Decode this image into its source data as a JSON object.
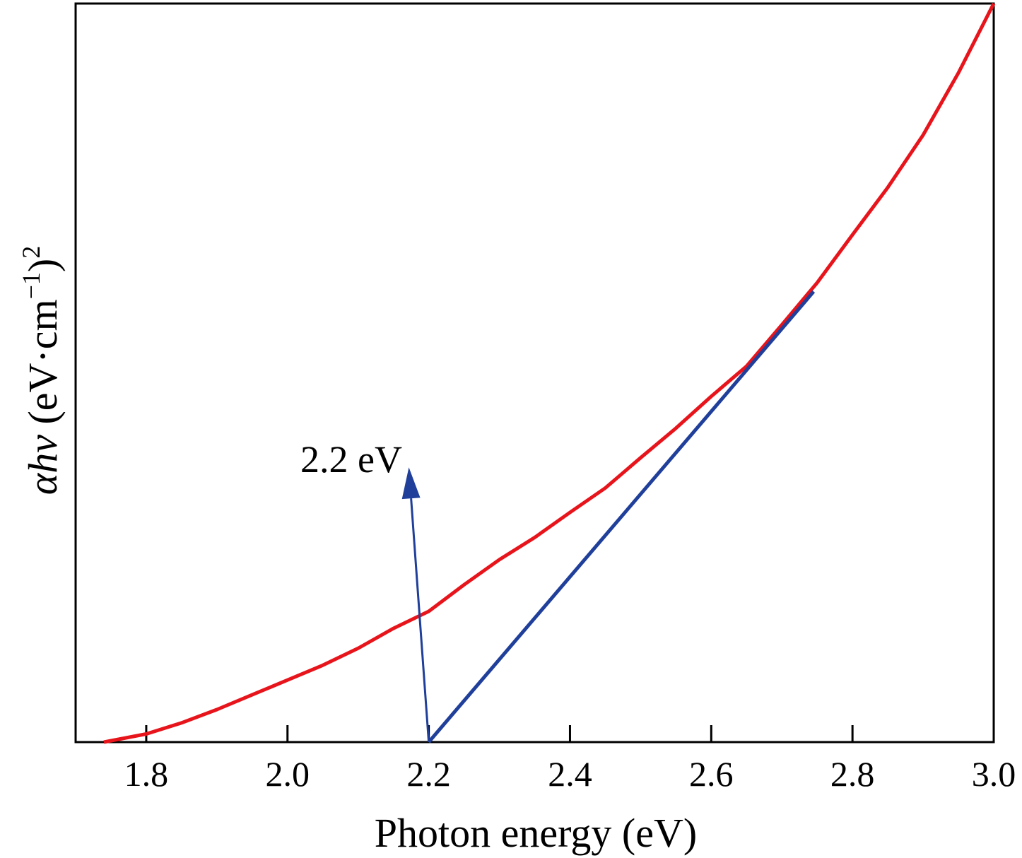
{
  "chart_data": {
    "type": "line",
    "xlabel": "Photon energy (eV)",
    "ylabel": {
      "symbol": "αhν",
      "unit_prefix": " (eV·cm",
      "unit_exp": "−1",
      "unit_suffix": ")",
      "power": "2"
    },
    "xlim": [
      1.7,
      3.0
    ],
    "ylim": [
      0,
      1
    ],
    "x_ticks": [
      "1.8",
      "2.0",
      "2.2",
      "2.4",
      "2.6",
      "2.8",
      "3.0"
    ],
    "y_ticks_shown": false,
    "grid": false,
    "series": [
      {
        "color": "#e8141b",
        "x": [
          1.74,
          1.8,
          1.85,
          1.9,
          1.95,
          2.0,
          2.05,
          2.1,
          2.15,
          2.2,
          2.25,
          2.3,
          2.35,
          2.4,
          2.45,
          2.5,
          2.55,
          2.6,
          2.65,
          2.7,
          2.75,
          2.8,
          2.85,
          2.9,
          2.95,
          3.0
        ],
        "y": [
          0.0,
          0.011,
          0.026,
          0.044,
          0.064,
          0.084,
          0.104,
          0.127,
          0.154,
          0.177,
          0.213,
          0.247,
          0.277,
          0.311,
          0.344,
          0.385,
          0.425,
          0.468,
          0.509,
          0.565,
          0.622,
          0.687,
          0.751,
          0.822,
          0.906,
          1.0
        ]
      }
    ],
    "fit_line": {
      "color": "#1f3f9a",
      "x": [
        2.2,
        2.745
      ],
      "y": [
        0.0,
        0.61
      ]
    },
    "annotation": {
      "text": "2.2 eV",
      "arrow_from": [
        2.2,
        0.0
      ],
      "arrow_to": [
        2.175,
        0.33
      ],
      "color": "#1f3f9a"
    }
  }
}
